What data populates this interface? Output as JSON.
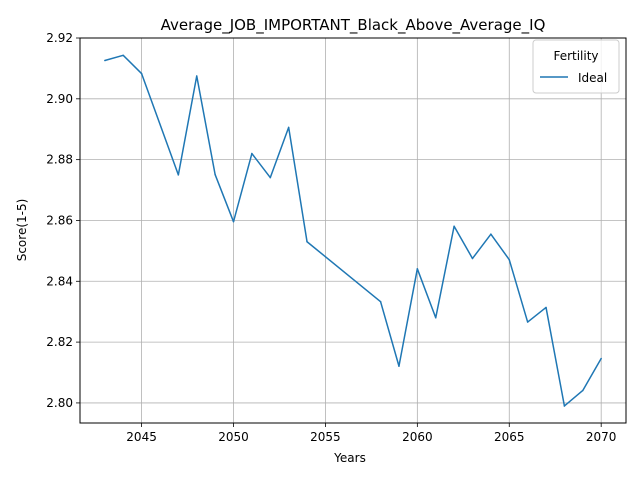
{
  "chart_data": {
    "type": "line",
    "title": "Average_JOB_IMPORTANT_Black_Above_Average_IQ",
    "xlabel": "Years",
    "ylabel": "Score(1-5)",
    "xlim": [
      2041.65,
      2071.35
    ],
    "ylim": [
      2.7934,
      2.92
    ],
    "x_ticks": [
      2045,
      2050,
      2055,
      2060,
      2065,
      2070
    ],
    "y_ticks": [
      2.8,
      2.82,
      2.84,
      2.86,
      2.88,
      2.9,
      2.92
    ],
    "y_tick_labels": [
      "2.80",
      "2.82",
      "2.84",
      "2.86",
      "2.88",
      "2.90",
      "2.92"
    ],
    "grid": true,
    "legend": {
      "title": "Fertility",
      "placement": "top-right"
    },
    "series": [
      {
        "name": "Ideal",
        "color": "#1f77b4",
        "x": [
          2043,
          2044,
          2045,
          2047,
          2048,
          2049,
          2050,
          2051,
          2052,
          2053,
          2054,
          2058,
          2059,
          2060,
          2061,
          2062,
          2063,
          2064,
          2065,
          2066,
          2067,
          2068,
          2069,
          2070
        ],
        "y": [
          2.9126,
          2.9143,
          2.9083,
          2.875,
          2.9075,
          2.8751,
          2.8596,
          2.882,
          2.8741,
          2.8906,
          2.853,
          2.8333,
          2.8121,
          2.8441,
          2.828,
          2.8581,
          2.8475,
          2.8555,
          2.8471,
          2.8266,
          2.8314,
          2.799,
          2.8041,
          2.8146
        ]
      }
    ]
  }
}
